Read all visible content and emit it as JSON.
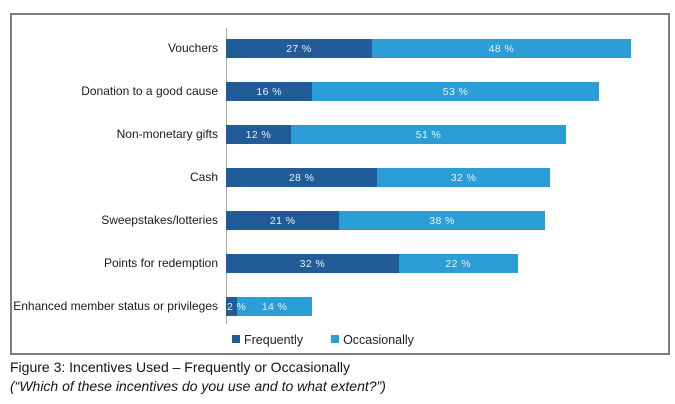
{
  "chart_data": {
    "type": "bar",
    "orientation": "horizontal",
    "stacked": true,
    "grid": false,
    "legend_position": "bottom",
    "categories": [
      "Vouchers",
      "Donation to a good cause",
      "Non-monetary gifts",
      "Cash",
      "Sweepstakes/lotteries",
      "Points for redemption",
      "Enhanced member status or privileges"
    ],
    "series": [
      {
        "name": "Frequently",
        "color": "#215c99",
        "values": [
          27,
          16,
          12,
          28,
          21,
          32,
          2
        ]
      },
      {
        "name": "Occasionally",
        "color": "#2b9ed7",
        "values": [
          48,
          53,
          51,
          32,
          38,
          22,
          14
        ]
      }
    ],
    "value_suffix": " %",
    "xlim": [
      0,
      81
    ]
  },
  "caption": {
    "title": "Figure 3: Incentives Used – Frequently or Occasionally",
    "subtitle": "(“Which of these incentives do you use and to what extent?”)"
  }
}
